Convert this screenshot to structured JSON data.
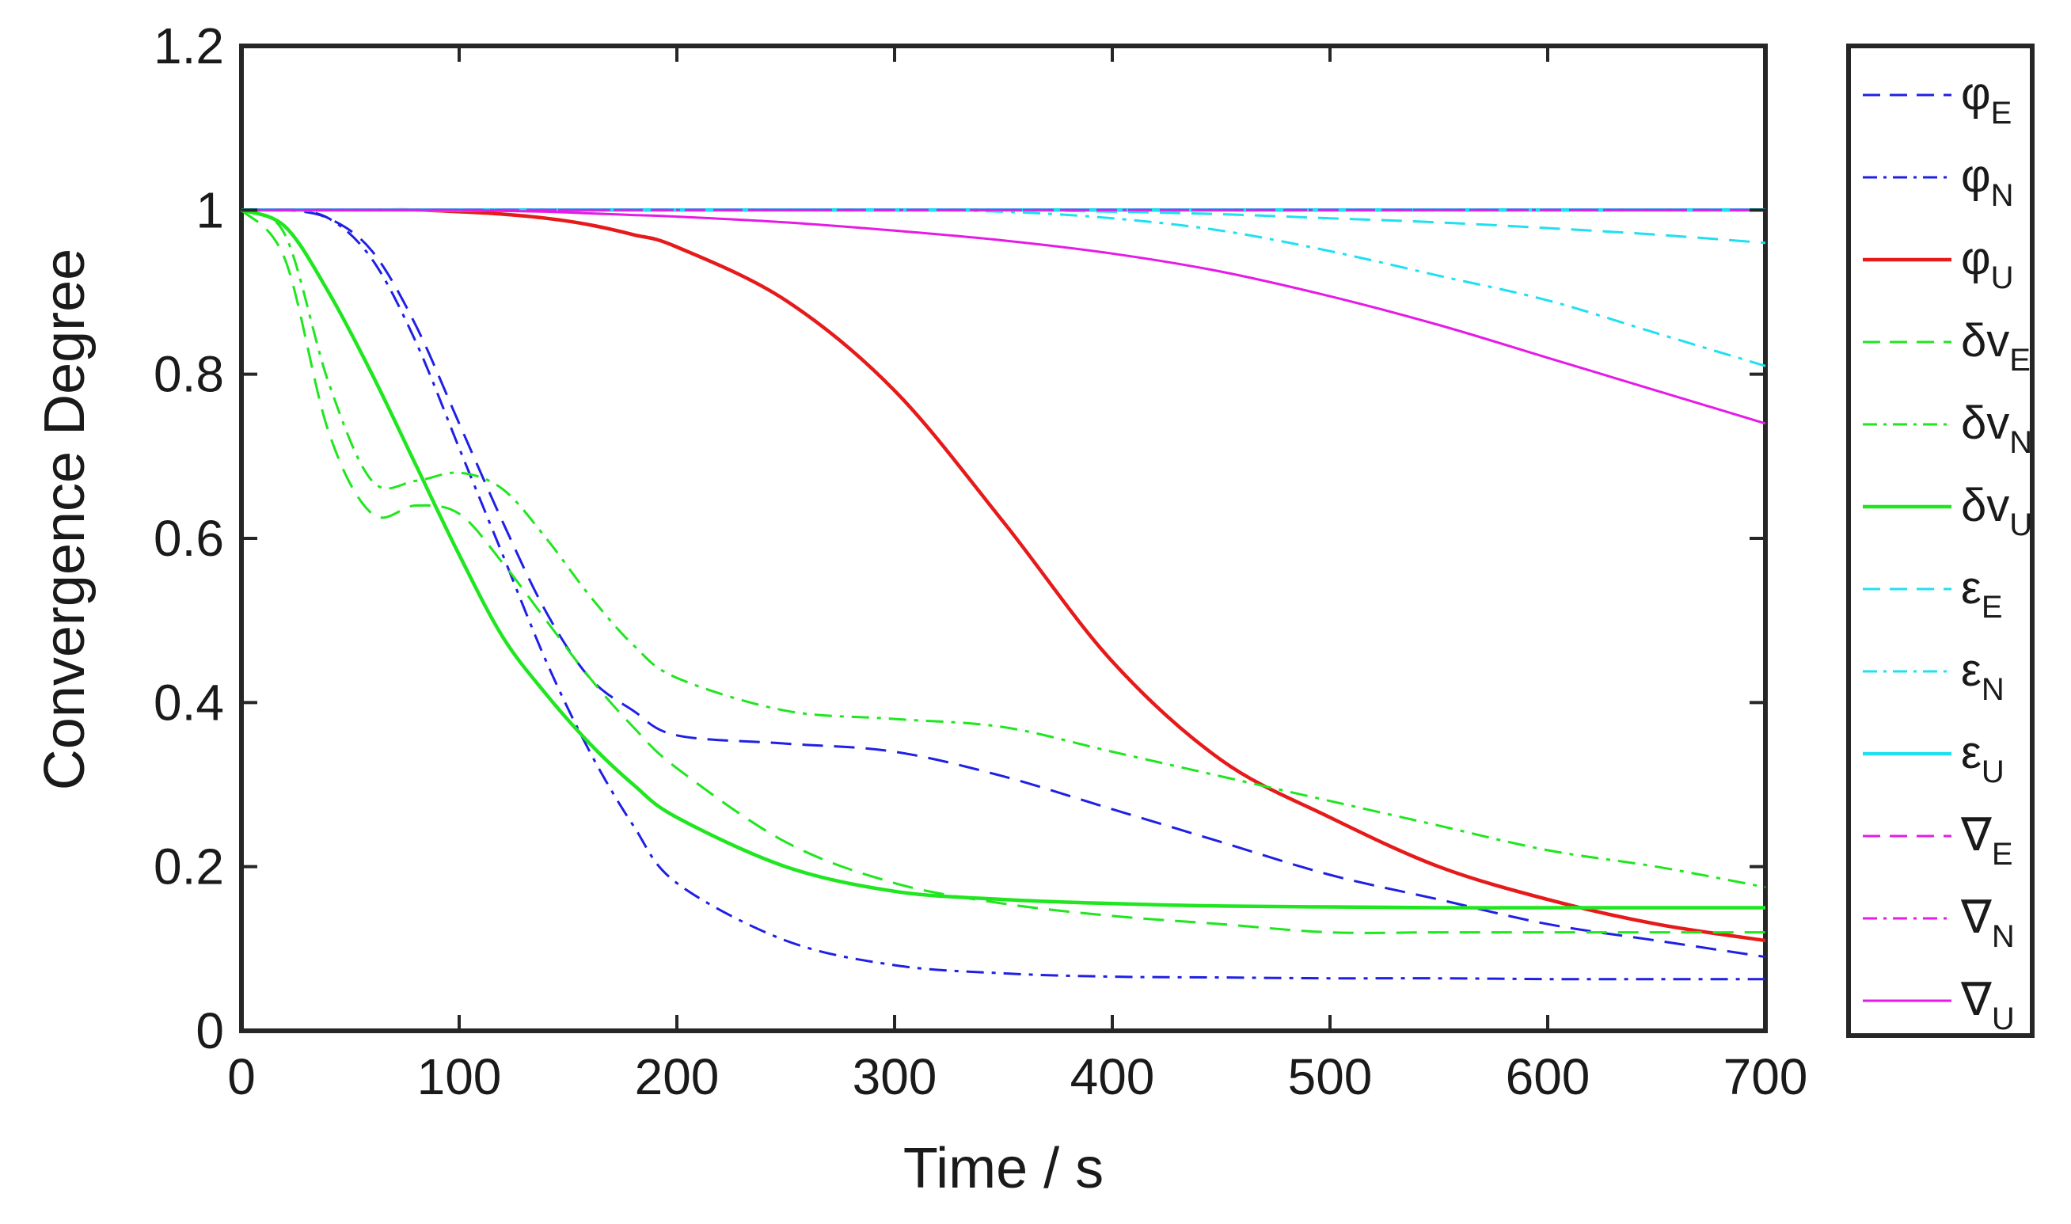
{
  "chart_data": {
    "type": "line",
    "title": "",
    "xlabel": "Time / s",
    "ylabel": "Convergence Degree",
    "xlim": [
      0,
      700
    ],
    "ylim": [
      0,
      1.2
    ],
    "xticks": [
      "0",
      "100",
      "200",
      "300",
      "400",
      "500",
      "600",
      "700"
    ],
    "yticks": [
      "0",
      "0.2",
      "0.4",
      "0.6",
      "0.8",
      "1",
      "1.2"
    ],
    "grid": false,
    "legend_position": "outside-right",
    "x": [
      0,
      20,
      40,
      60,
      80,
      100,
      120,
      140,
      160,
      180,
      200,
      250,
      300,
      350,
      400,
      450,
      500,
      550,
      600,
      650,
      700
    ],
    "series": [
      {
        "name": "φE",
        "symbol": "φ",
        "sub": "E",
        "color": "#1f1fe6",
        "style": "dashed",
        "width": 3,
        "values": [
          1.0,
          1.0,
          0.99,
          0.95,
          0.86,
          0.74,
          0.62,
          0.51,
          0.43,
          0.39,
          0.36,
          0.35,
          0.34,
          0.31,
          0.27,
          0.23,
          0.19,
          0.16,
          0.13,
          0.11,
          0.09
        ]
      },
      {
        "name": "φN",
        "symbol": "φ",
        "sub": "N",
        "color": "#1f1fe6",
        "style": "dashdot",
        "width": 3,
        "values": [
          1.0,
          1.0,
          0.99,
          0.94,
          0.84,
          0.71,
          0.58,
          0.45,
          0.34,
          0.25,
          0.18,
          0.11,
          0.08,
          0.07,
          0.066,
          0.065,
          0.064,
          0.064,
          0.063,
          0.063,
          0.063
        ]
      },
      {
        "name": "φU",
        "symbol": "φ",
        "sub": "U",
        "color": "#e61a1a",
        "style": "solid",
        "width": 4.5,
        "values": [
          1.0,
          1.0,
          1.0,
          1.0,
          1.0,
          0.998,
          0.995,
          0.99,
          0.982,
          0.97,
          0.955,
          0.89,
          0.78,
          0.62,
          0.45,
          0.33,
          0.26,
          0.2,
          0.16,
          0.13,
          0.11
        ]
      },
      {
        "name": "δvE",
        "symbol": "δv",
        "sub": "E",
        "color": "#1fe61f",
        "style": "dashed",
        "width": 3,
        "values": [
          1.0,
          0.94,
          0.73,
          0.63,
          0.64,
          0.63,
          0.57,
          0.5,
          0.43,
          0.37,
          0.32,
          0.23,
          0.18,
          0.155,
          0.14,
          0.13,
          0.12,
          0.12,
          0.12,
          0.12,
          0.12
        ]
      },
      {
        "name": "δvN",
        "symbol": "δv",
        "sub": "N",
        "color": "#1fe61f",
        "style": "dashdot",
        "width": 3,
        "values": [
          1.0,
          0.97,
          0.79,
          0.67,
          0.67,
          0.68,
          0.66,
          0.6,
          0.53,
          0.47,
          0.43,
          0.39,
          0.38,
          0.37,
          0.34,
          0.31,
          0.28,
          0.25,
          0.22,
          0.2,
          0.175
        ]
      },
      {
        "name": "δvU",
        "symbol": "δv",
        "sub": "U",
        "color": "#1fe61f",
        "style": "solid",
        "width": 4.5,
        "values": [
          1.0,
          0.98,
          0.9,
          0.8,
          0.69,
          0.58,
          0.48,
          0.41,
          0.35,
          0.3,
          0.26,
          0.2,
          0.17,
          0.16,
          0.155,
          0.152,
          0.151,
          0.15,
          0.15,
          0.15,
          0.15
        ]
      },
      {
        "name": "εE",
        "symbol": "ε",
        "sub": "E",
        "color": "#1fe0f0",
        "style": "dashed",
        "width": 3,
        "values": [
          1.0,
          1.0,
          1.0,
          1.0,
          1.0,
          1.0,
          1.0,
          1.0,
          1.0,
          1.0,
          1.0,
          1.0,
          1.0,
          1.0,
          0.998,
          0.995,
          0.99,
          0.985,
          0.978,
          0.97,
          0.96
        ]
      },
      {
        "name": "εN",
        "symbol": "ε",
        "sub": "N",
        "color": "#1fe0f0",
        "style": "dashdot",
        "width": 3,
        "values": [
          1.0,
          1.0,
          1.0,
          1.0,
          1.0,
          1.0,
          1.0,
          1.0,
          1.0,
          1.0,
          1.0,
          1.0,
          1.0,
          0.998,
          0.99,
          0.975,
          0.95,
          0.92,
          0.89,
          0.85,
          0.81
        ]
      },
      {
        "name": "εU",
        "symbol": "ε",
        "sub": "U",
        "color": "#1fe0f0",
        "style": "solid",
        "width": 4.5,
        "values": [
          1.0,
          1.0,
          1.0,
          1.0,
          1.0,
          1.0,
          1.0,
          1.0,
          1.0,
          1.0,
          1.0,
          1.0,
          1.0,
          1.0,
          1.0,
          1.0,
          1.0,
          1.0,
          1.0,
          1.0,
          1.0
        ]
      },
      {
        "name": "∇E",
        "symbol": "∇",
        "sub": "E",
        "color": "#e61ae6",
        "style": "dashed",
        "width": 3,
        "values": [
          1.0,
          1.0,
          1.0,
          1.0,
          1.0,
          1.0,
          1.0,
          1.0,
          1.0,
          1.0,
          1.0,
          1.0,
          1.0,
          1.0,
          1.0,
          1.0,
          1.0,
          1.0,
          1.0,
          1.0,
          1.0
        ]
      },
      {
        "name": "∇N",
        "symbol": "∇",
        "sub": "N",
        "color": "#e61ae6",
        "style": "dashdot",
        "width": 3,
        "values": [
          1.0,
          1.0,
          1.0,
          1.0,
          1.0,
          1.0,
          1.0,
          1.0,
          1.0,
          1.0,
          1.0,
          1.0,
          1.0,
          1.0,
          1.0,
          1.0,
          1.0,
          1.0,
          1.0,
          1.0,
          1.0
        ]
      },
      {
        "name": "∇U",
        "symbol": "∇",
        "sub": "U",
        "color": "#e61ae6",
        "style": "solid",
        "width": 3,
        "values": [
          1.0,
          1.0,
          1.0,
          1.0,
          1.0,
          1.0,
          0.999,
          0.998,
          0.996,
          0.994,
          0.992,
          0.985,
          0.975,
          0.963,
          0.947,
          0.925,
          0.895,
          0.86,
          0.82,
          0.78,
          0.74
        ]
      }
    ]
  }
}
